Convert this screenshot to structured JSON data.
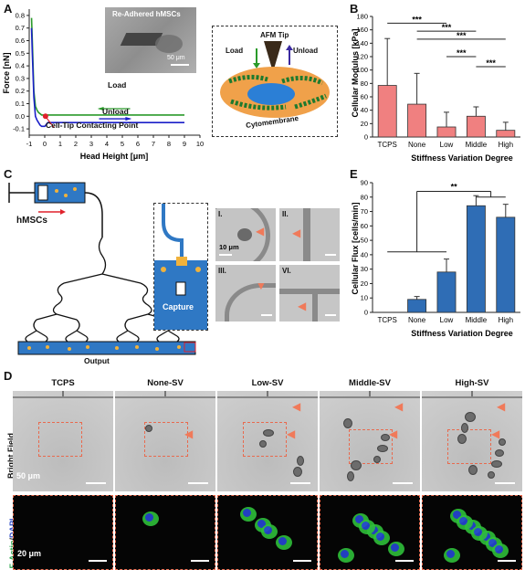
{
  "panels": {
    "A": "A",
    "B": "B",
    "C": "C",
    "D": "D",
    "E": "E"
  },
  "panel_a": {
    "inset_title": "Re-Adhered hMSCs",
    "scale": "50 μm",
    "load": "Load",
    "unload": "Unload",
    "contact": "Cell-Tip Contacting Point",
    "schematic": {
      "tip": "AFM Tip",
      "load": "Load",
      "unload": "Unload",
      "membrane": "Cytomembrane"
    },
    "colors": {
      "load": "#2a9a2a",
      "unload": "#1a1fc8",
      "approach": "#2e6cc0",
      "contact": "#e0212b"
    }
  },
  "panel_c": {
    "hmsc": "hMSCs",
    "output": "Output",
    "capture": "Capture",
    "images": [
      "I.",
      "II.",
      "III.",
      "VI."
    ],
    "scale": "10 μm"
  },
  "panel_d": {
    "columns": [
      "TCPS",
      "None-SV",
      "Low-SV",
      "Middle-SV",
      "High-SV"
    ],
    "row1": "Bright Field",
    "row2_green": "F-Actin",
    "row2_blue": "DAPI",
    "scale1": "50 μm",
    "scale2": "20 μm"
  },
  "chart_data": [
    {
      "panel": "A",
      "type": "line",
      "xlabel": "Head Height [μm]",
      "ylabel": "Force [nN]",
      "xlim": [
        -1,
        10
      ],
      "ylim": [
        -0.15,
        0.85
      ],
      "xticks": [
        -1,
        0,
        1,
        2,
        3,
        4,
        5,
        6,
        7,
        8,
        9,
        10
      ],
      "yticks": [
        -0.1,
        0.0,
        0.1,
        0.2,
        0.3,
        0.4,
        0.5,
        0.6,
        0.7,
        0.8
      ],
      "series": [
        {
          "name": "Load",
          "x": [
            -0.85,
            -0.8,
            -0.7,
            -0.6,
            -0.5,
            -0.4,
            -0.3,
            -0.2,
            0,
            0.5,
            1,
            2,
            3,
            4,
            5,
            6,
            7,
            8,
            9
          ],
          "y": [
            0.78,
            0.6,
            0.2,
            0.08,
            0.05,
            0.03,
            0.02,
            0.01,
            0.01,
            0.01,
            0.01,
            0.01,
            0.01,
            0.01,
            0.01,
            0.01,
            0.01,
            0.01,
            0.01
          ]
        },
        {
          "name": "Unload",
          "x": [
            -0.85,
            -0.8,
            -0.7,
            -0.6,
            -0.5,
            -0.4,
            -0.3,
            -0.2,
            0,
            0.2,
            0.5,
            1,
            2,
            3,
            4,
            5,
            6,
            7,
            8,
            9
          ],
          "y": [
            0.7,
            0.5,
            0.15,
            0.0,
            -0.03,
            -0.05,
            -0.07,
            -0.08,
            -0.08,
            -0.05,
            -0.05,
            -0.05,
            -0.05,
            -0.05,
            -0.05,
            -0.05,
            -0.05,
            -0.05,
            -0.05,
            -0.05
          ]
        }
      ]
    },
    {
      "panel": "B",
      "type": "bar",
      "categories": [
        "TCPS",
        "None",
        "Low",
        "Middle",
        "High"
      ],
      "values": [
        77,
        49,
        15,
        31,
        10
      ],
      "errors": [
        70,
        46,
        22,
        14,
        12
      ],
      "xlabel": "Stiffness Variation Degree",
      "ylabel": "Cellular Modulus [kPa]",
      "ylim": [
        0,
        180
      ],
      "yticks": [
        0,
        20,
        40,
        60,
        80,
        100,
        120,
        140,
        160,
        180
      ],
      "significance": [
        "***",
        "***",
        "***",
        "***",
        "***"
      ],
      "color": "#f08080"
    },
    {
      "panel": "E",
      "type": "bar",
      "categories": [
        "TCPS",
        "None",
        "Low",
        "Middle",
        "High"
      ],
      "values": [
        0,
        9,
        28,
        74,
        66
      ],
      "errors": [
        0,
        2,
        9,
        7,
        9
      ],
      "xlabel": "Stiffness Variation Degree",
      "ylabel": "Cellular Flux [cells/min]",
      "ylim": [
        0,
        90
      ],
      "yticks": [
        0,
        10,
        20,
        30,
        40,
        50,
        60,
        70,
        80,
        90
      ],
      "significance": [
        "**"
      ],
      "color": "#2f6db5"
    }
  ]
}
